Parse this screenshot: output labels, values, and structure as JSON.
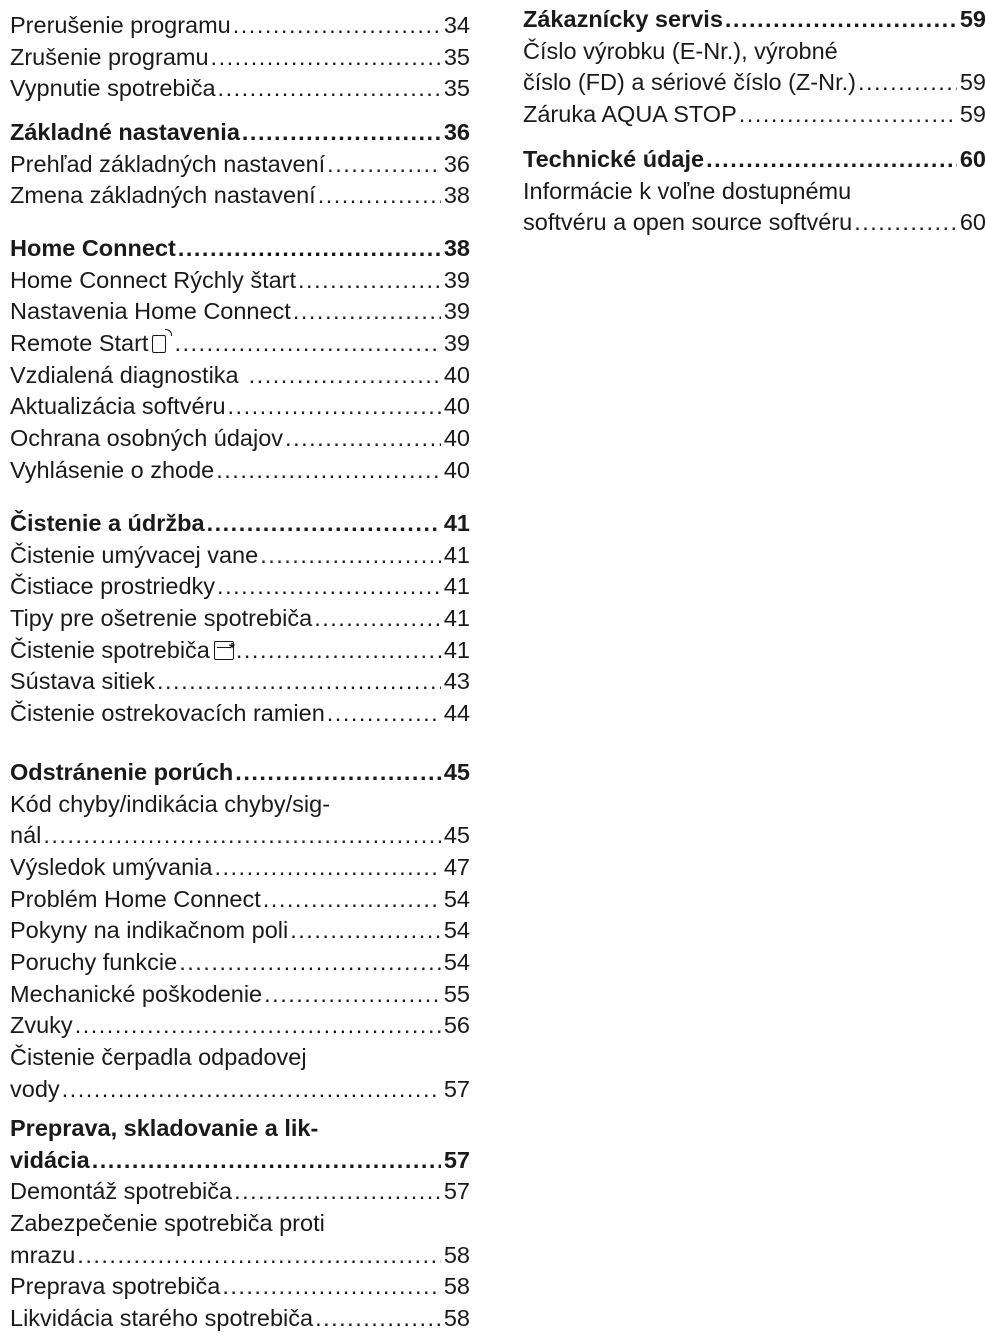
{
  "left": {
    "e1": {
      "title": "Prerušenie programu",
      "page": "34"
    },
    "e2": {
      "title": "Zrušenie programu",
      "page": "35"
    },
    "e3": {
      "title": "Vypnutie spotrebiča",
      "page": "35"
    },
    "s1": {
      "title": "Základné nastavenia",
      "page": "36"
    },
    "e4": {
      "title": "Prehľad základných nastavení",
      "page": "36"
    },
    "e5": {
      "title": "Zmena základných nastavení",
      "page": "38"
    },
    "s2": {
      "title": "Home Connect",
      "page": "38"
    },
    "e6": {
      "title": "Home Connect Rýchly štart",
      "page": "39"
    },
    "e7": {
      "title": "Nastavenia Home Connect",
      "page": "39"
    },
    "e8": {
      "title": "Remote Start",
      "page": "39",
      "icon": "remote-start-icon"
    },
    "e9": {
      "title": "Vzdialená diagnostika",
      "page": "40"
    },
    "e10": {
      "title": "Aktualizácia softvéru",
      "page": "40"
    },
    "e11": {
      "title": "Ochrana osobných údajov",
      "page": "40"
    },
    "e12": {
      "title": "Vyhlásenie o zhode",
      "page": "40"
    },
    "s3": {
      "title": "Čistenie a údržba",
      "page": "41"
    },
    "e13": {
      "title": "Čistenie umývacej vane",
      "page": "41"
    },
    "e14": {
      "title": "Čistiace prostriedky",
      "page": "41"
    },
    "e15": {
      "title": "Tipy pre ošetrenie spotrebiča",
      "page": "41"
    },
    "e16": {
      "title": "Čistenie spotrebiča",
      "page": "41",
      "icon": "machine-care-icon"
    },
    "e17": {
      "title": "Sústava sitiek",
      "page": "43"
    },
    "e18": {
      "title": "Čistenie ostrekovacích ramien",
      "page": "44"
    },
    "s4": {
      "title": "Odstránenie porúch",
      "page": "45"
    },
    "e19": {
      "line1": "Kód chyby/indikácia chyby/sig-",
      "line2": "nál",
      "page": "45"
    },
    "e20": {
      "title": "Výsledok umývania",
      "page": "47"
    },
    "e21": {
      "title": "Problém Home Connect",
      "page": "54"
    },
    "e22": {
      "title": "Pokyny na indikačnom poli",
      "page": "54"
    },
    "e23": {
      "title": "Poruchy funkcie",
      "page": "54"
    },
    "e24": {
      "title": "Mechanické poškodenie",
      "page": "55"
    },
    "e25": {
      "title": "Zvuky",
      "page": "56"
    },
    "e26": {
      "line1": "Čistenie čerpadla odpadovej",
      "line2": "vody",
      "page": "57"
    },
    "s5": {
      "line1": "Preprava, skladovanie a lik-",
      "line2": "vidácia",
      "page": "57"
    },
    "e27": {
      "title": "Demontáž spotrebiča",
      "page": "57"
    },
    "e28": {
      "line1": "Zabezpečenie spotrebiča proti",
      "line2": "mrazu",
      "page": "58"
    },
    "e29": {
      "title": "Preprava spotrebiča",
      "page": "58"
    },
    "e30": {
      "title": "Likvidácia starého spotrebiča",
      "page": "58"
    }
  },
  "right": {
    "s6": {
      "title": "Zákaznícky servis",
      "page": "59"
    },
    "e31": {
      "line1": "Číslo výrobku (E-Nr.), výrobné",
      "line2": "číslo (FD) a sériové číslo (Z-Nr.)",
      "page": "59"
    },
    "e32": {
      "title": "Záruka AQUA STOP",
      "page": "59"
    },
    "s7": {
      "title": "Technické údaje",
      "page": "60"
    },
    "e33": {
      "line1": "Informácie k voľne dostupnému",
      "line2": "softvéru a open source softvéru",
      "page": "60"
    }
  }
}
